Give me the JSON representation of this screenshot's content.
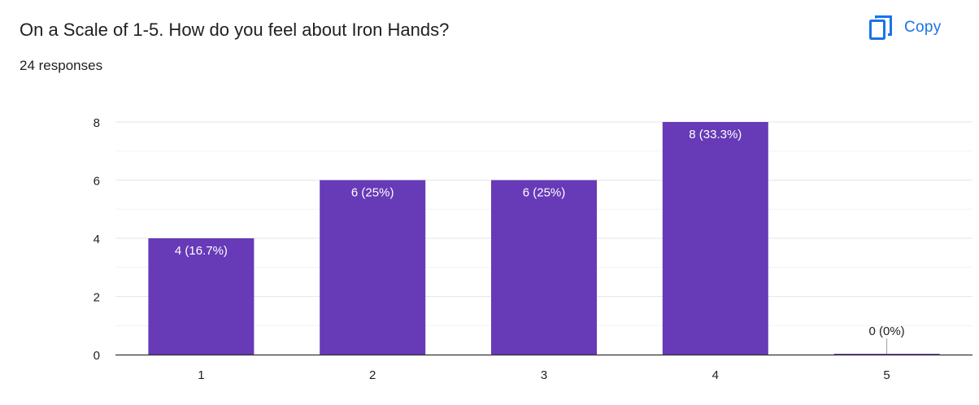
{
  "header": {
    "question": "On a Scale of 1-5. How do you feel about Iron Hands?",
    "responses": "24 responses",
    "copy_label": "Copy",
    "copy_icon": "copy-icon"
  },
  "colors": {
    "bar": "#673ab7",
    "accent": "#1a73e8",
    "grid": "#e8e8e8",
    "axis": "#333333",
    "text": "#202124"
  },
  "chart_data": {
    "type": "bar",
    "categories": [
      "1",
      "2",
      "3",
      "4",
      "5"
    ],
    "values": [
      4,
      6,
      6,
      8,
      0
    ],
    "data_labels": [
      "4 (16.7%)",
      "6 (25%)",
      "6 (25%)",
      "8 (33.3%)",
      "0 (0%)"
    ],
    "yticks": [
      0,
      2,
      4,
      6,
      8
    ],
    "ylim": [
      0,
      8
    ],
    "minor_grid_step": 1,
    "grid": true,
    "legend": "none"
  }
}
